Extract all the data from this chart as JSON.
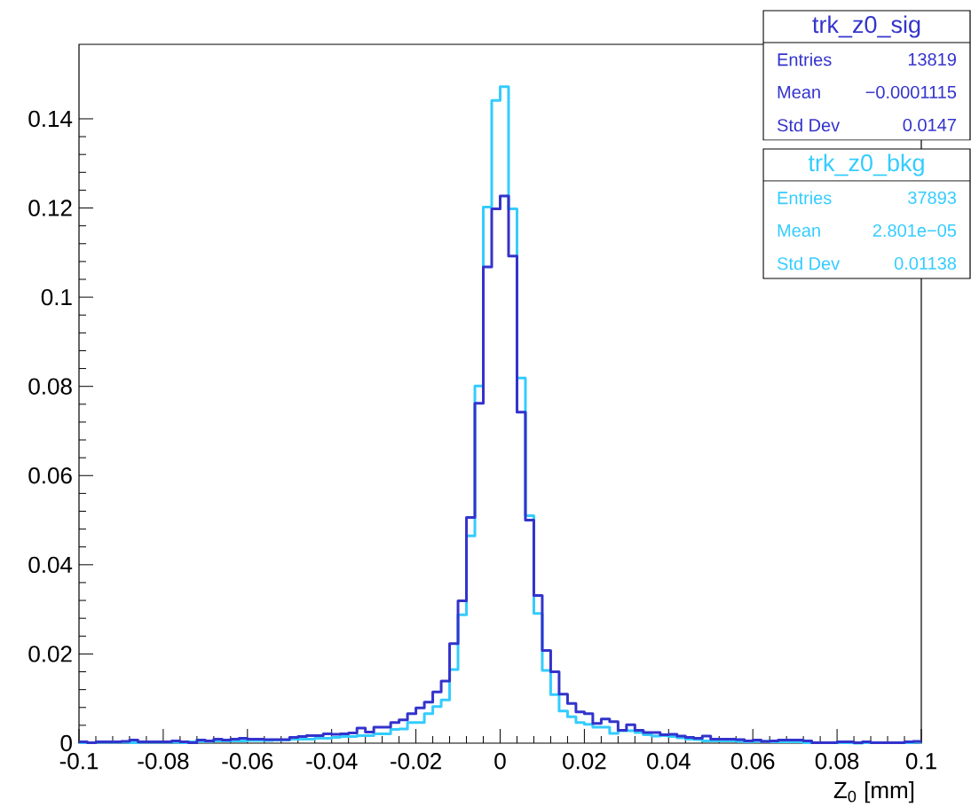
{
  "chart_data": {
    "type": "histogram",
    "xlabel": "Z$_{0}$ [mm]",
    "bins": [
      -0.1,
      -0.098,
      -0.096,
      -0.094,
      -0.092,
      -0.09,
      -0.088,
      -0.086,
      -0.084,
      -0.082,
      -0.08,
      -0.078,
      -0.076,
      -0.074,
      -0.072,
      -0.07,
      -0.068,
      -0.066,
      -0.064,
      -0.062,
      -0.06,
      -0.058,
      -0.056,
      -0.054,
      -0.052,
      -0.05,
      -0.048,
      -0.046,
      -0.044,
      -0.042,
      -0.04,
      -0.038,
      -0.036,
      -0.034,
      -0.032,
      -0.03,
      -0.028,
      -0.026,
      -0.024,
      -0.022,
      -0.02,
      -0.018,
      -0.016,
      -0.014,
      -0.012,
      -0.01,
      -0.008,
      -0.006,
      -0.004,
      -0.002,
      0,
      0.002,
      0.004,
      0.006,
      0.008,
      0.01,
      0.012,
      0.014,
      0.016,
      0.018,
      0.02,
      0.022,
      0.024,
      0.026,
      0.028,
      0.03,
      0.032,
      0.034,
      0.036,
      0.038,
      0.04,
      0.042,
      0.044,
      0.046,
      0.048,
      0.05,
      0.052,
      0.054,
      0.056,
      0.058,
      0.06,
      0.062,
      0.064,
      0.066,
      0.068,
      0.07,
      0.072,
      0.074,
      0.076,
      0.078,
      0.08,
      0.082,
      0.084,
      0.086,
      0.088,
      0.09,
      0.092,
      0.094,
      0.096,
      0.098,
      0.1
    ],
    "series": [
      {
        "name": "trk_z0_sig",
        "color": "#3333cc",
        "values": [
          0.0003,
          0.0001,
          0.0003,
          0.0003,
          0.0003,
          0.0004,
          0.0007,
          0.0003,
          0.0003,
          0.0003,
          0.0003,
          0.0005,
          0.0003,
          0.0001,
          0.0007,
          0.0005,
          0.0009,
          0.0007,
          0.0009,
          0.0011,
          0.0009,
          0.0009,
          0.0008,
          0.0008,
          0.0008,
          0.0013,
          0.0015,
          0.0017,
          0.0017,
          0.0021,
          0.002,
          0.0021,
          0.0023,
          0.0034,
          0.0025,
          0.0036,
          0.0036,
          0.0046,
          0.0052,
          0.0066,
          0.0079,
          0.0092,
          0.0115,
          0.0139,
          0.0223,
          0.0319,
          0.0506,
          0.0762,
          0.1068,
          0.1198,
          0.1227,
          0.1092,
          0.0742,
          0.05,
          0.0331,
          0.0208,
          0.016,
          0.011,
          0.0089,
          0.007,
          0.0066,
          0.0044,
          0.0054,
          0.0048,
          0.0029,
          0.0041,
          0.0029,
          0.0024,
          0.0024,
          0.0019,
          0.002,
          0.0016,
          0.0013,
          0.0011,
          0.0016,
          0.0009,
          0.0009,
          0.0009,
          0.0008,
          0.0005,
          0.0007,
          0.0004,
          0.0005,
          0.0007,
          0.0007,
          0.0007,
          0.0005,
          0.0001,
          0.0001,
          0.0001,
          0.0003,
          0.0003,
          0.0001,
          0.0003,
          0.0001,
          0.0001,
          0.0001,
          0.0001,
          0.0003,
          0.0004
        ]
      },
      {
        "name": "trk_z0_bkg",
        "color": "#33ccff",
        "values": [
          0.0001,
          0.0001,
          0.0002,
          0.0002,
          0.0002,
          0.0002,
          0.0001,
          0.0002,
          0.0002,
          0.0002,
          0.0002,
          0.0002,
          0.0001,
          0.0003,
          0.0004,
          0.0004,
          0.0005,
          0.0005,
          0.0005,
          0.0005,
          0.0006,
          0.0006,
          0.0006,
          0.0007,
          0.0007,
          0.0009,
          0.0009,
          0.0009,
          0.0011,
          0.0011,
          0.0013,
          0.0015,
          0.0015,
          0.0017,
          0.0017,
          0.0021,
          0.0021,
          0.0031,
          0.0032,
          0.0046,
          0.0046,
          0.0066,
          0.0082,
          0.0097,
          0.0165,
          0.0288,
          0.0465,
          0.0801,
          0.1202,
          0.1441,
          0.1472,
          0.1198,
          0.0819,
          0.051,
          0.0291,
          0.0163,
          0.0109,
          0.0072,
          0.0059,
          0.0046,
          0.0042,
          0.0036,
          0.0036,
          0.0022,
          0.0028,
          0.0028,
          0.0024,
          0.0019,
          0.0016,
          0.0017,
          0.0015,
          0.0012,
          0.0009,
          0.0008,
          0.0005,
          0.0005,
          0.0005,
          0.0005,
          0.0004,
          0.0003,
          0.0004,
          0.0004,
          0.0003,
          0.0003,
          0.0003,
          0.0003,
          0.0001,
          0.0001,
          0.0001,
          0.0001,
          0.0001,
          0.0001,
          0,
          0.0001,
          0.0001,
          0.0001,
          0.0001,
          0.0001,
          0.0001,
          0.0002
        ]
      }
    ],
    "xlim": [
      -0.1,
      0.1
    ],
    "ylim": [
      0,
      0.1567
    ],
    "xticks": [
      -0.1,
      -0.08,
      -0.06,
      -0.04,
      -0.02,
      0,
      0.02,
      0.04,
      0.06,
      0.08,
      0.1
    ],
    "yticks": [
      0,
      0.02,
      0.04,
      0.06,
      0.08,
      0.1,
      0.12,
      0.14
    ],
    "annotations": [
      "Entries",
      "13819",
      "Mean",
      "−0.0001115",
      "Std Dev",
      "0.0147",
      "Entries",
      "37893",
      "Mean",
      "2.801e−05",
      "Std Dev",
      "0.01138"
    ]
  }
}
